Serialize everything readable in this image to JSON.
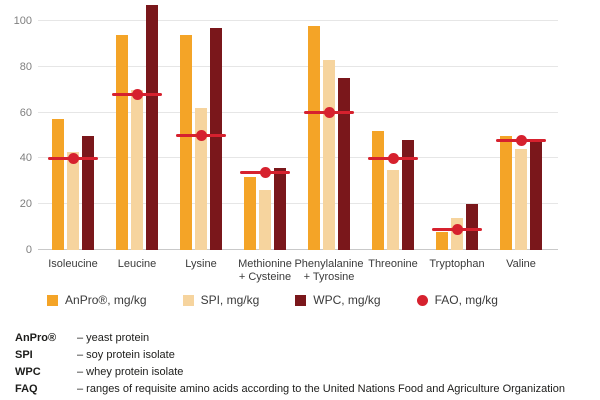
{
  "chart_data": {
    "type": "bar",
    "title": "",
    "categories": [
      "Isoleucine",
      "Leucine",
      "Lysine",
      "Methionine + Cysteine",
      "Phenylalanine + Tyrosine",
      "Threonine",
      "Tryptophan",
      "Valine"
    ],
    "category_label_lines": [
      [
        "Isoleucine"
      ],
      [
        "Leucine"
      ],
      [
        "Lysine"
      ],
      [
        "Methionine",
        "+ Cysteine"
      ],
      [
        "Phenylalanine",
        "+ Tyrosine"
      ],
      [
        "Threonine"
      ],
      [
        "Tryptophan"
      ],
      [
        "Valine"
      ]
    ],
    "series": [
      {
        "name": "AnPro®, mg/kg",
        "color": "#F4A427",
        "values": [
          57,
          94,
          94,
          32,
          98,
          52,
          8,
          50
        ]
      },
      {
        "name": "SPI, mg/kg",
        "color": "#F6D49E",
        "values": [
          43,
          70,
          62,
          26,
          83,
          35,
          14,
          44
        ]
      },
      {
        "name": "WPC, mg/kg",
        "color": "#7A171B",
        "values": [
          50,
          107,
          97,
          36,
          75,
          48,
          20,
          48
        ]
      }
    ],
    "marker_series": {
      "name": "FAO, mg/kg",
      "color": "#D6212E",
      "values": [
        40,
        68,
        50,
        34,
        60,
        40,
        9,
        48
      ]
    },
    "xlabel": "",
    "ylabel": "",
    "ylim": [
      0,
      100
    ],
    "yticks": [
      0,
      20,
      40,
      60,
      80,
      100
    ],
    "grid": true,
    "legend_position": "bottom"
  },
  "legend": {
    "items": [
      {
        "label": "AnPro®, mg/kg",
        "marker": "square",
        "color": "#F4A427"
      },
      {
        "label": "SPI, mg/kg",
        "marker": "square",
        "color": "#F6D49E"
      },
      {
        "label": "WPC, mg/kg",
        "marker": "square",
        "color": "#7A171B"
      },
      {
        "label": "FAO, mg/kg",
        "marker": "circle",
        "color": "#D6212E"
      }
    ]
  },
  "footnotes": [
    {
      "term": "AnPro®",
      "definition": "– yeast protein"
    },
    {
      "term": "SPI",
      "definition": "– soy protein isolate"
    },
    {
      "term": "WPC",
      "definition": "– whey protein isolate"
    },
    {
      "term": "FAQ",
      "definition": "– ranges of requisite amino acids according to the United Nations Food and Agriculture Organization"
    }
  ],
  "colors": {
    "grid": "#E6E6E6",
    "zero_axis": "#C9C9C9",
    "tick_text": "#7F7F7F",
    "label_text": "#3A3A3A",
    "background": "#FFFFFF"
  }
}
